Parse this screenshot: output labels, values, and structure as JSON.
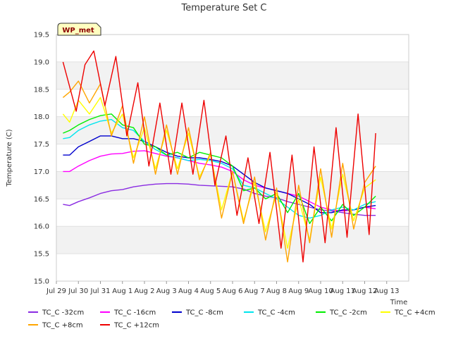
{
  "chart_data": {
    "type": "line",
    "title": "Temperature Set C",
    "ylabel": "Temperature (C)",
    "xlabel": "Time",
    "station_badge": "WP_met",
    "ylim": [
      15.0,
      19.5
    ],
    "yticks": [
      "15.0",
      "15.5",
      "16.0",
      "16.5",
      "17.0",
      "17.5",
      "18.0",
      "18.5",
      "19.0",
      "19.5"
    ],
    "xlim": [
      0,
      16
    ],
    "xticks": [
      "Jul 29",
      "Jul 30",
      "Jul 31",
      "Aug 1",
      "Aug 2",
      "Aug 3",
      "Aug 4",
      "Aug 5",
      "Aug 6",
      "Aug 7",
      "Aug 8",
      "Aug 9",
      "Aug 10",
      "Aug 11",
      "Aug 12",
      "Aug 13"
    ],
    "x_unit": "days from Jul 29",
    "grid": "horizontal alternating bands",
    "legend_position": "bottom",
    "series": [
      {
        "name": "TC_C -32cm",
        "color": "#8a2be2",
        "x": [
          0.3,
          0.6,
          1.0,
          1.5,
          2.0,
          2.5,
          3.0,
          3.5,
          4.0,
          4.5,
          5.0,
          5.5,
          6.0,
          6.5,
          7.0,
          7.5,
          8.0,
          8.5,
          9.0,
          9.5,
          10.0,
          10.5,
          11.0,
          11.5,
          12.0,
          12.5,
          13.0,
          13.5,
          14.0,
          14.5
        ],
        "y": [
          16.4,
          16.38,
          16.45,
          16.52,
          16.6,
          16.65,
          16.67,
          16.72,
          16.75,
          16.77,
          16.78,
          16.78,
          16.77,
          16.75,
          16.74,
          16.73,
          16.72,
          16.68,
          16.6,
          16.55,
          16.52,
          16.45,
          16.4,
          16.35,
          16.3,
          16.28,
          16.25,
          16.22,
          16.2,
          16.2
        ]
      },
      {
        "name": "TC_C -16cm",
        "color": "#ff00ff",
        "x": [
          0.3,
          0.6,
          1.0,
          1.5,
          2.0,
          2.5,
          3.0,
          3.5,
          4.0,
          4.5,
          5.0,
          5.5,
          6.0,
          6.5,
          7.0,
          7.5,
          8.0,
          8.5,
          9.0,
          9.5,
          10.0,
          10.5,
          11.0,
          11.5,
          12.0,
          12.5,
          13.0,
          13.5,
          14.0,
          14.5
        ],
        "y": [
          17.0,
          17.0,
          17.1,
          17.2,
          17.28,
          17.32,
          17.33,
          17.37,
          17.38,
          17.33,
          17.28,
          17.25,
          17.2,
          17.15,
          17.12,
          17.08,
          17.0,
          16.85,
          16.75,
          16.7,
          16.65,
          16.6,
          16.55,
          16.45,
          16.35,
          16.3,
          16.28,
          16.3,
          16.35,
          16.32
        ]
      },
      {
        "name": "TC_C -8cm",
        "color": "#0000cd",
        "x": [
          0.3,
          0.6,
          1.0,
          1.5,
          2.0,
          2.5,
          3.0,
          3.5,
          4.0,
          4.5,
          5.0,
          5.5,
          6.0,
          6.5,
          7.0,
          7.5,
          8.0,
          8.5,
          9.0,
          9.5,
          10.0,
          10.5,
          11.0,
          11.5,
          12.0,
          12.5,
          13.0,
          13.5,
          14.0,
          14.5
        ],
        "y": [
          17.3,
          17.3,
          17.45,
          17.55,
          17.65,
          17.65,
          17.6,
          17.6,
          17.55,
          17.45,
          17.35,
          17.28,
          17.25,
          17.25,
          17.22,
          17.18,
          17.1,
          16.95,
          16.8,
          16.7,
          16.65,
          16.6,
          16.5,
          16.4,
          16.25,
          16.25,
          16.3,
          16.3,
          16.35,
          16.38
        ]
      },
      {
        "name": "TC_C -4cm",
        "color": "#00e5ee",
        "x": [
          0.3,
          0.6,
          1.0,
          1.5,
          2.0,
          2.5,
          3.0,
          3.5,
          4.0,
          4.5,
          5.0,
          5.5,
          6.0,
          6.5,
          7.0,
          7.5,
          8.0,
          8.5,
          9.0,
          9.5,
          10.0,
          10.5,
          11.0,
          11.5,
          12.0,
          12.5,
          13.0,
          13.5,
          14.0,
          14.5
        ],
        "y": [
          17.6,
          17.62,
          17.75,
          17.85,
          17.92,
          17.95,
          17.8,
          17.75,
          17.55,
          17.4,
          17.3,
          17.25,
          17.2,
          17.22,
          17.2,
          17.15,
          17.05,
          16.75,
          16.7,
          16.6,
          16.5,
          16.35,
          16.2,
          16.15,
          16.2,
          16.3,
          16.35,
          16.3,
          16.4,
          16.45
        ]
      },
      {
        "name": "TC_C -2cm",
        "color": "#00ee00",
        "x": [
          0.3,
          0.6,
          1.0,
          1.5,
          2.0,
          2.5,
          3.0,
          3.5,
          4.0,
          4.5,
          5.0,
          5.5,
          6.0,
          6.5,
          7.0,
          7.5,
          8.0,
          8.5,
          9.0,
          9.5,
          10.0,
          10.5,
          11.0,
          11.5,
          12.0,
          12.5,
          13.0,
          13.5,
          14.0,
          14.5
        ],
        "y": [
          17.7,
          17.75,
          17.85,
          17.95,
          18.02,
          18.05,
          17.85,
          17.8,
          17.5,
          17.45,
          17.3,
          17.35,
          17.25,
          17.35,
          17.3,
          17.25,
          17.1,
          16.65,
          16.7,
          16.5,
          16.6,
          16.25,
          16.6,
          16.05,
          16.35,
          16.1,
          16.4,
          16.2,
          16.35,
          16.55
        ]
      },
      {
        "name": "TC_C +4cm",
        "color": "#ffff00",
        "x": [
          0.3,
          0.6,
          1.0,
          1.5,
          2.0,
          2.5,
          3.0,
          3.5,
          4.0,
          4.5,
          5.0,
          5.5,
          6.0,
          6.5,
          7.0,
          7.5,
          8.0,
          8.5,
          9.0,
          9.5,
          10.0,
          10.5,
          11.0,
          11.5,
          12.0,
          12.5,
          13.0,
          13.5,
          14.0,
          14.5
        ],
        "y": [
          18.05,
          17.9,
          18.3,
          18.05,
          18.35,
          17.7,
          18.05,
          17.25,
          17.8,
          17.05,
          17.75,
          17.05,
          17.7,
          16.9,
          17.3,
          16.3,
          17.0,
          16.1,
          16.8,
          15.9,
          16.6,
          15.6,
          16.5,
          15.75,
          16.9,
          15.95,
          16.95,
          16.1,
          16.7,
          16.85
        ]
      },
      {
        "name": "TC_C +8cm",
        "color": "#ffa500",
        "x": [
          0.3,
          0.6,
          1.0,
          1.5,
          2.0,
          2.5,
          3.0,
          3.5,
          4.0,
          4.5,
          5.0,
          5.5,
          6.0,
          6.5,
          7.0,
          7.5,
          8.0,
          8.5,
          9.0,
          9.5,
          10.0,
          10.5,
          11.0,
          11.5,
          12.0,
          12.5,
          13.0,
          13.5,
          14.0,
          14.5
        ],
        "y": [
          18.35,
          18.45,
          18.65,
          18.25,
          18.6,
          17.65,
          18.2,
          17.15,
          18.0,
          16.95,
          17.85,
          16.95,
          17.8,
          16.85,
          17.35,
          16.15,
          17.0,
          16.05,
          16.9,
          15.75,
          16.7,
          15.35,
          16.75,
          15.7,
          17.05,
          15.8,
          17.15,
          15.95,
          16.8,
          17.1
        ]
      },
      {
        "name": "TC_C +12cm",
        "color": "#ee0000",
        "x": [
          0.3,
          0.6,
          0.9,
          1.3,
          1.7,
          2.2,
          2.7,
          3.2,
          3.7,
          4.2,
          4.7,
          5.2,
          5.7,
          6.2,
          6.7,
          7.2,
          7.7,
          8.2,
          8.7,
          9.2,
          9.7,
          10.2,
          10.7,
          11.2,
          11.7,
          12.2,
          12.7,
          13.2,
          13.7,
          14.2,
          14.5
        ],
        "y": [
          19.0,
          18.55,
          18.1,
          18.95,
          19.2,
          18.2,
          19.1,
          17.65,
          18.62,
          17.1,
          18.25,
          16.95,
          18.25,
          16.95,
          18.3,
          16.75,
          17.65,
          16.2,
          17.25,
          16.05,
          17.35,
          15.6,
          17.3,
          15.35,
          17.45,
          15.7,
          17.8,
          15.8,
          18.05,
          15.85,
          17.7
        ]
      }
    ]
  }
}
